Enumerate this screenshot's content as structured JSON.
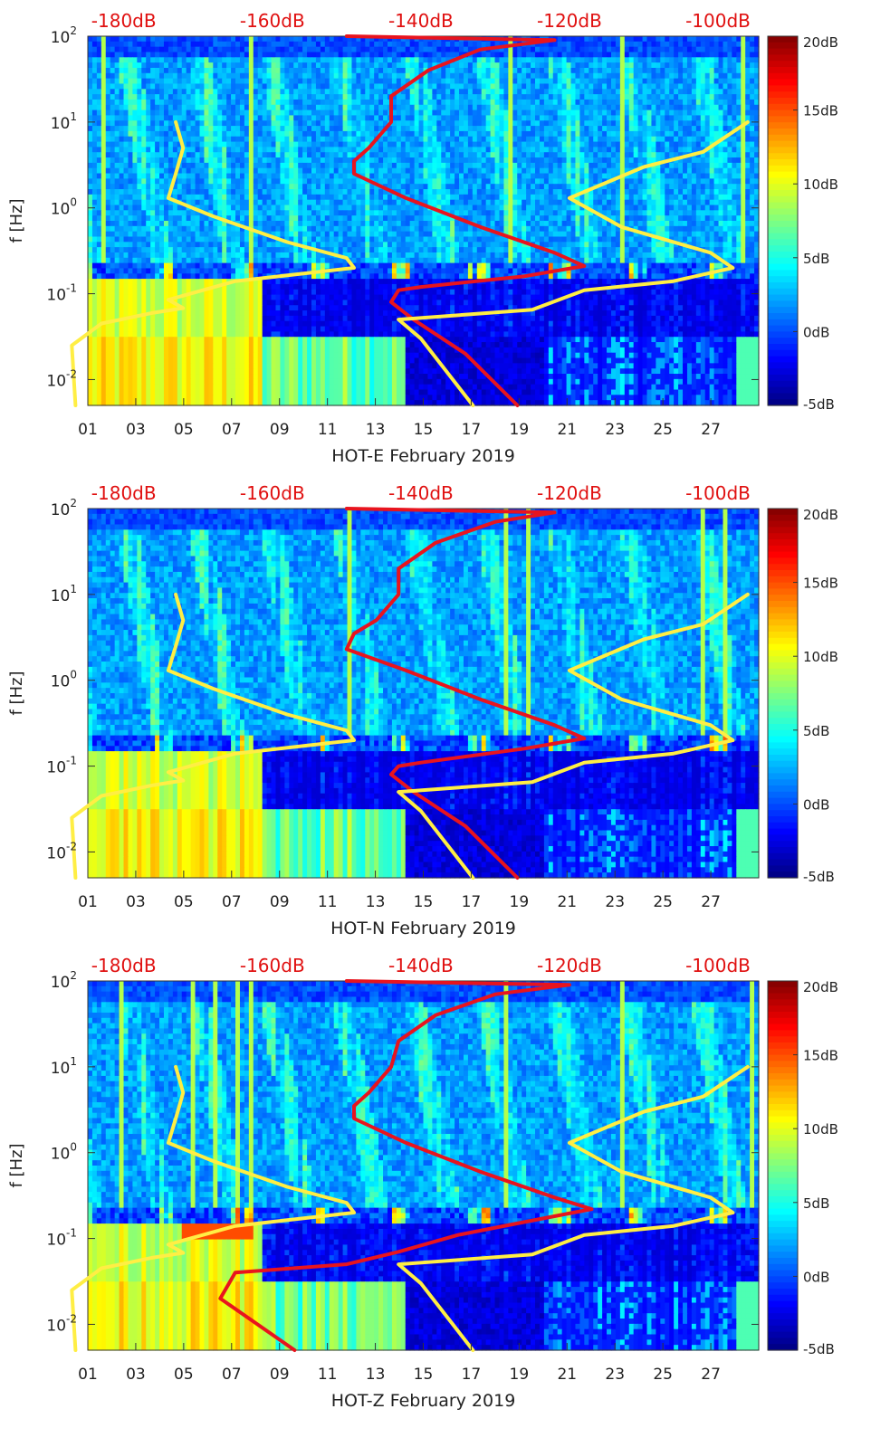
{
  "chart_data": [
    {
      "type": "heatmap",
      "title": "HOT-E February 2019",
      "xlabel": "HOT-E February 2019",
      "ylabel": "f [Hz]",
      "xlim": [
        1,
        29
      ],
      "ylim": [
        0.005,
        100
      ],
      "yscale": "log",
      "xticks": [
        "01",
        "03",
        "05",
        "07",
        "09",
        "11",
        "13",
        "15",
        "17",
        "19",
        "21",
        "23",
        "25",
        "27"
      ],
      "yticks": [
        {
          "label": "10",
          "exp": "-2",
          "value": 0.01
        },
        {
          "label": "10",
          "exp": "-1",
          "value": 0.1
        },
        {
          "label": "10",
          "exp": "0",
          "value": 1
        },
        {
          "label": "10",
          "exp": "1",
          "value": 10
        },
        {
          "label": "10",
          "exp": "2",
          "value": 100
        }
      ],
      "top_labels": [
        "-180dB",
        "-160dB",
        "-140dB",
        "-120dB",
        "-100dB"
      ],
      "top_label_values": [
        -180,
        -160,
        -140,
        -120,
        -100
      ],
      "colorbar": {
        "labels": [
          "20dB",
          "15dB",
          "10dB",
          "5dB",
          "0dB",
          "-5dB"
        ],
        "values": [
          20,
          15,
          10,
          5,
          0,
          -5
        ],
        "range": [
          -5,
          20
        ],
        "colormap": "jet"
      },
      "series": [
        {
          "name": "yellow-curve-low",
          "color": "#ffee44",
          "points": [
            [
              -186.5,
              0.005
            ],
            [
              -187,
              0.025
            ],
            [
              -183,
              0.045
            ],
            [
              -176,
              0.06
            ],
            [
              -172,
              0.068
            ],
            [
              -174,
              0.085
            ],
            [
              -165,
              0.14
            ],
            [
              -149,
              0.2
            ],
            [
              -150,
              0.26
            ],
            [
              -158,
              0.4
            ],
            [
              -168,
              0.8
            ],
            [
              -174,
              1.3
            ],
            [
              -173,
              2.5
            ],
            [
              -172,
              5
            ],
            [
              -173,
              10
            ]
          ]
        },
        {
          "name": "red-curve",
          "color": "#e8141e",
          "points": [
            [
              -127,
              0.005
            ],
            [
              -134,
              0.02
            ],
            [
              -141,
              0.05
            ],
            [
              -144,
              0.08
            ],
            [
              -143,
              0.11
            ],
            [
              -140,
              0.12
            ],
            [
              -126,
              0.16
            ],
            [
              -118,
              0.21
            ],
            [
              -122,
              0.3
            ],
            [
              -132,
              0.6
            ],
            [
              -142,
              1.3
            ],
            [
              -149,
              2.5
            ],
            [
              -149,
              3.5
            ],
            [
              -147,
              5
            ],
            [
              -144,
              10
            ],
            [
              -144,
              20
            ],
            [
              -139,
              40
            ],
            [
              -132,
              70
            ],
            [
              -122,
              90
            ],
            [
              -150,
              100
            ]
          ]
        },
        {
          "name": "yellow-curve-high",
          "color": "#ffee44",
          "points": [
            [
              -133,
              0.005
            ],
            [
              -140,
              0.03
            ],
            [
              -143,
              0.05
            ],
            [
              -125,
              0.065
            ],
            [
              -118,
              0.11
            ],
            [
              -106,
              0.14
            ],
            [
              -98,
              0.2
            ],
            [
              -101,
              0.3
            ],
            [
              -113,
              0.6
            ],
            [
              -120,
              1.3
            ],
            [
              -110,
              3
            ],
            [
              -102,
              4.5
            ],
            [
              -96,
              10
            ]
          ]
        }
      ]
    },
    {
      "type": "heatmap",
      "title": "HOT-N February 2019",
      "xlabel": "HOT-N February 2019",
      "ylabel": "f [Hz]",
      "xlim": [
        1,
        29
      ],
      "ylim": [
        0.005,
        100
      ],
      "yscale": "log",
      "xticks": [
        "01",
        "03",
        "05",
        "07",
        "09",
        "11",
        "13",
        "15",
        "17",
        "19",
        "21",
        "23",
        "25",
        "27"
      ],
      "yticks": [
        {
          "label": "10",
          "exp": "-2",
          "value": 0.01
        },
        {
          "label": "10",
          "exp": "-1",
          "value": 0.1
        },
        {
          "label": "10",
          "exp": "0",
          "value": 1
        },
        {
          "label": "10",
          "exp": "1",
          "value": 10
        },
        {
          "label": "10",
          "exp": "2",
          "value": 100
        }
      ],
      "top_labels": [
        "-180dB",
        "-160dB",
        "-140dB",
        "-120dB",
        "-100dB"
      ],
      "top_label_values": [
        -180,
        -160,
        -140,
        -120,
        -100
      ],
      "colorbar": {
        "labels": [
          "20dB",
          "15dB",
          "10dB",
          "5dB",
          "0dB",
          "-5dB"
        ],
        "values": [
          20,
          15,
          10,
          5,
          0,
          -5
        ],
        "range": [
          -5,
          20
        ],
        "colormap": "jet"
      },
      "series": [
        {
          "name": "yellow-curve-low",
          "color": "#ffee44",
          "points": [
            [
              -186.5,
              0.005
            ],
            [
              -187,
              0.025
            ],
            [
              -183,
              0.045
            ],
            [
              -176,
              0.06
            ],
            [
              -172,
              0.068
            ],
            [
              -174,
              0.085
            ],
            [
              -165,
              0.14
            ],
            [
              -149,
              0.2
            ],
            [
              -150,
              0.26
            ],
            [
              -158,
              0.4
            ],
            [
              -168,
              0.8
            ],
            [
              -174,
              1.3
            ],
            [
              -173,
              2.5
            ],
            [
              -172,
              5
            ],
            [
              -173,
              10
            ]
          ]
        },
        {
          "name": "red-curve",
          "color": "#e8141e",
          "points": [
            [
              -127,
              0.005
            ],
            [
              -134,
              0.02
            ],
            [
              -141,
              0.05
            ],
            [
              -144,
              0.08
            ],
            [
              -143,
              0.1
            ],
            [
              -140,
              0.11
            ],
            [
              -126,
              0.16
            ],
            [
              -118,
              0.21
            ],
            [
              -122,
              0.3
            ],
            [
              -132,
              0.6
            ],
            [
              -142,
              1.3
            ],
            [
              -150,
              2.3
            ],
            [
              -149,
              3.5
            ],
            [
              -146,
              5
            ],
            [
              -143,
              10
            ],
            [
              -143,
              20
            ],
            [
              -138,
              40
            ],
            [
              -130,
              70
            ],
            [
              -122,
              90
            ],
            [
              -150,
              100
            ]
          ]
        },
        {
          "name": "yellow-curve-high",
          "color": "#ffee44",
          "points": [
            [
              -133,
              0.005
            ],
            [
              -140,
              0.03
            ],
            [
              -143,
              0.05
            ],
            [
              -125,
              0.065
            ],
            [
              -118,
              0.11
            ],
            [
              -106,
              0.14
            ],
            [
              -98,
              0.2
            ],
            [
              -101,
              0.3
            ],
            [
              -113,
              0.6
            ],
            [
              -120,
              1.3
            ],
            [
              -110,
              3
            ],
            [
              -102,
              4.5
            ],
            [
              -96,
              10
            ]
          ]
        }
      ]
    },
    {
      "type": "heatmap",
      "title": "HOT-Z February 2019",
      "xlabel": "HOT-Z February 2019",
      "ylabel": "f [Hz]",
      "xlim": [
        1,
        29
      ],
      "ylim": [
        0.005,
        100
      ],
      "yscale": "log",
      "xticks": [
        "01",
        "03",
        "05",
        "07",
        "09",
        "11",
        "13",
        "15",
        "17",
        "19",
        "21",
        "23",
        "25",
        "27"
      ],
      "yticks": [
        {
          "label": "10",
          "exp": "-2",
          "value": 0.01
        },
        {
          "label": "10",
          "exp": "-1",
          "value": 0.1
        },
        {
          "label": "10",
          "exp": "0",
          "value": 1
        },
        {
          "label": "10",
          "exp": "1",
          "value": 10
        },
        {
          "label": "10",
          "exp": "2",
          "value": 100
        }
      ],
      "top_labels": [
        "-180dB",
        "-160dB",
        "-140dB",
        "-120dB",
        "-100dB"
      ],
      "top_label_values": [
        -180,
        -160,
        -140,
        -120,
        -100
      ],
      "colorbar": {
        "labels": [
          "20dB",
          "15dB",
          "10dB",
          "5dB",
          "0dB",
          "-5dB"
        ],
        "values": [
          20,
          15,
          10,
          5,
          0,
          -5
        ],
        "range": [
          -5,
          20
        ],
        "colormap": "jet"
      },
      "series": [
        {
          "name": "yellow-curve-low",
          "color": "#ffee44",
          "points": [
            [
              -186.5,
              0.005
            ],
            [
              -187,
              0.025
            ],
            [
              -183,
              0.045
            ],
            [
              -176,
              0.06
            ],
            [
              -172,
              0.068
            ],
            [
              -174,
              0.085
            ],
            [
              -165,
              0.14
            ],
            [
              -149,
              0.2
            ],
            [
              -150,
              0.26
            ],
            [
              -158,
              0.4
            ],
            [
              -168,
              0.8
            ],
            [
              -174,
              1.3
            ],
            [
              -173,
              2.5
            ],
            [
              -172,
              5
            ],
            [
              -173,
              10
            ]
          ]
        },
        {
          "name": "red-curve",
          "color": "#e8141e",
          "points": [
            [
              -157,
              0.005
            ],
            [
              -167,
              0.02
            ],
            [
              -165,
              0.04
            ],
            [
              -150,
              0.05
            ],
            [
              -143,
              0.07
            ],
            [
              -135,
              0.11
            ],
            [
              -127,
              0.15
            ],
            [
              -117,
              0.22
            ],
            [
              -122,
              0.3
            ],
            [
              -132,
              0.6
            ],
            [
              -142,
              1.3
            ],
            [
              -149,
              2.5
            ],
            [
              -149,
              3.5
            ],
            [
              -147,
              5
            ],
            [
              -144,
              10
            ],
            [
              -143,
              20
            ],
            [
              -138,
              40
            ],
            [
              -130,
              70
            ],
            [
              -120,
              90
            ],
            [
              -150,
              100
            ]
          ]
        },
        {
          "name": "yellow-curve-high",
          "color": "#ffee44",
          "points": [
            [
              -133,
              0.005
            ],
            [
              -140,
              0.03
            ],
            [
              -143,
              0.05
            ],
            [
              -125,
              0.065
            ],
            [
              -118,
              0.11
            ],
            [
              -106,
              0.14
            ],
            [
              -98,
              0.2
            ],
            [
              -101,
              0.3
            ],
            [
              -113,
              0.6
            ],
            [
              -120,
              1.3
            ],
            [
              -110,
              3
            ],
            [
              -102,
              4.5
            ],
            [
              -96,
              10
            ]
          ]
        }
      ]
    }
  ]
}
